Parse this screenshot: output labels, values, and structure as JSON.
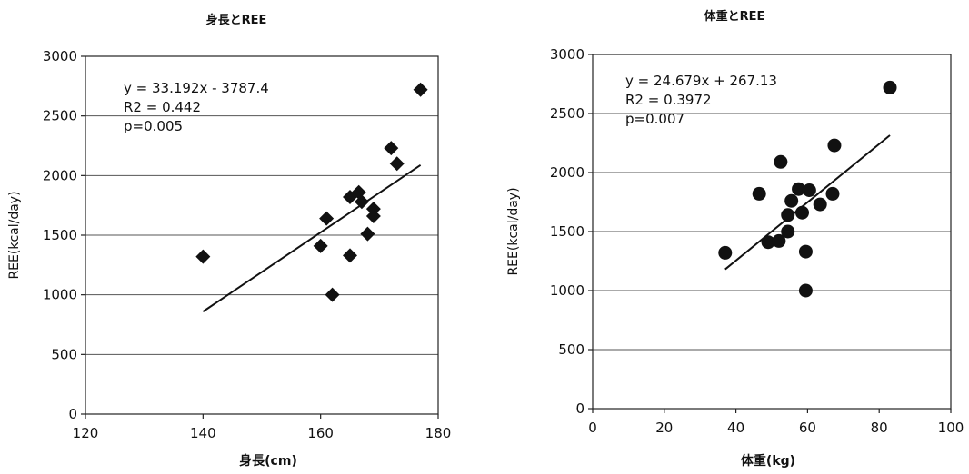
{
  "chart_data": [
    {
      "type": "scatter",
      "title": "身長とREE",
      "xlabel": "身長(cm)",
      "ylabel": "REE(kcal/day)",
      "xlim": [
        120,
        180
      ],
      "ylim": [
        0,
        3000
      ],
      "x_ticks": [
        "120",
        "140",
        "160",
        "180"
      ],
      "y_ticks": [
        "0",
        "500",
        "1000",
        "1500",
        "2000",
        "2500",
        "3000"
      ],
      "marker": "diamond",
      "grid": true,
      "annotations": [
        "y = 33.192x - 3787.4",
        "R2 = 0.442",
        "p=0.005"
      ],
      "trendline": {
        "x": [
          140,
          177
        ],
        "y": [
          859.5,
          2087.6
        ]
      },
      "points": [
        {
          "x": 140,
          "y": 1320
        },
        {
          "x": 160,
          "y": 1410
        },
        {
          "x": 161,
          "y": 1640
        },
        {
          "x": 162,
          "y": 1000
        },
        {
          "x": 165,
          "y": 1330
        },
        {
          "x": 165,
          "y": 1820
        },
        {
          "x": 166.5,
          "y": 1860
        },
        {
          "x": 167,
          "y": 1780
        },
        {
          "x": 168,
          "y": 1510
        },
        {
          "x": 169,
          "y": 1660
        },
        {
          "x": 169,
          "y": 1720
        },
        {
          "x": 172,
          "y": 2230
        },
        {
          "x": 173,
          "y": 2100
        },
        {
          "x": 177,
          "y": 2720
        }
      ]
    },
    {
      "type": "scatter",
      "title": "体重とREE",
      "xlabel": "体重(kg)",
      "ylabel": "REE(kcal/day)",
      "xlim": [
        0,
        100
      ],
      "ylim": [
        0,
        3000
      ],
      "x_ticks": [
        "0",
        "20",
        "40",
        "60",
        "80",
        "100"
      ],
      "y_ticks": [
        "0",
        "500",
        "1000",
        "1500",
        "2000",
        "2500",
        "3000"
      ],
      "marker": "circle",
      "grid": true,
      "annotations": [
        "y = 24.679x + 267.13",
        "R2 = 0.3972",
        "p=0.007"
      ],
      "trendline": {
        "x": [
          37,
          83
        ],
        "y": [
          1180.3,
          2315.5
        ]
      },
      "points": [
        {
          "x": 37,
          "y": 1320
        },
        {
          "x": 46.5,
          "y": 1820
        },
        {
          "x": 49,
          "y": 1410
        },
        {
          "x": 52,
          "y": 1420
        },
        {
          "x": 52.5,
          "y": 2090
        },
        {
          "x": 54.5,
          "y": 1500
        },
        {
          "x": 54.5,
          "y": 1640
        },
        {
          "x": 55.5,
          "y": 1760
        },
        {
          "x": 57.5,
          "y": 1860
        },
        {
          "x": 58.5,
          "y": 1660
        },
        {
          "x": 59.5,
          "y": 1330
        },
        {
          "x": 59.5,
          "y": 1000
        },
        {
          "x": 60.5,
          "y": 1850
        },
        {
          "x": 63.5,
          "y": 1730
        },
        {
          "x": 67,
          "y": 1820
        },
        {
          "x": 67.5,
          "y": 2230
        },
        {
          "x": 83,
          "y": 2720
        }
      ]
    }
  ]
}
